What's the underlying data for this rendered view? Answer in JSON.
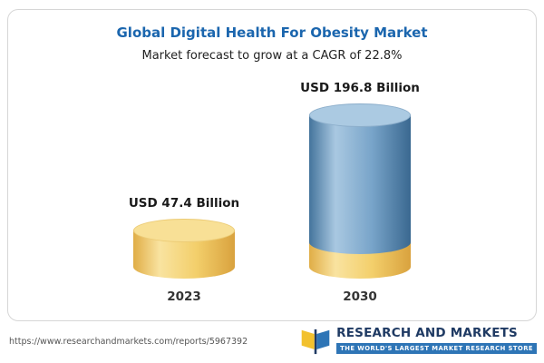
{
  "header": {
    "title": "Global Digital Health For Obesity Market",
    "subtitle": "Market forecast to grow at a CAGR of 22.8%"
  },
  "chart_data": {
    "type": "bar",
    "categories": [
      "2023",
      "2030"
    ],
    "values": [
      47.4,
      196.8
    ],
    "unit": "USD Billion",
    "value_labels": [
      "USD 47.4 Billion",
      "USD 196.8 Billion"
    ],
    "cagr_percent": 22.8,
    "title": "Global Digital Health For Obesity Market",
    "subtitle": "Market forecast to grow at a CAGR of 22.8%",
    "xlabel": "",
    "ylabel": "",
    "grid": false,
    "legend": "none",
    "colors": {
      "bar_2023": "#f3cf6b",
      "bar_2030": "#78a4c9",
      "bar_2030_base": "#f3cf6b",
      "title_text": "#1b66ae"
    }
  },
  "footer": {
    "url": "https://www.researchandmarkets.com/reports/5967392",
    "brand_name": "RESEARCH AND MARKETS",
    "brand_tagline": "THE WORLD'S LARGEST MARKET RESEARCH STORE"
  }
}
